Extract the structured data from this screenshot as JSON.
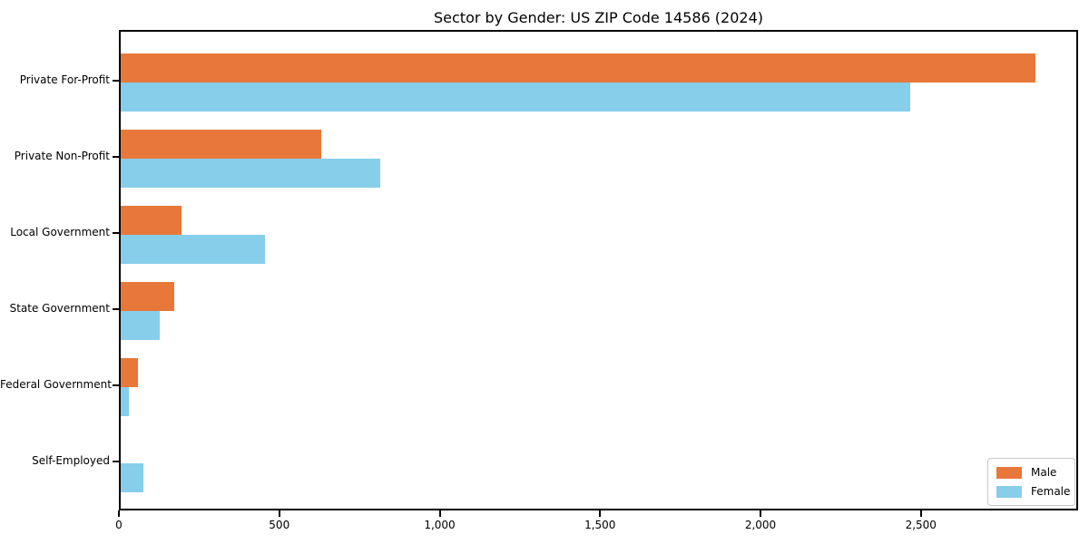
{
  "chart_data": {
    "type": "bar",
    "orientation": "horizontal",
    "title": "Sector by Gender: US ZIP Code 14586 (2024)",
    "categories": [
      "Private For-Profit",
      "Private Non-Profit",
      "Local Government",
      "State Government",
      "Federal Government",
      "Self-Employed"
    ],
    "series": [
      {
        "name": "Male",
        "color": "#E8773A",
        "values": [
          2850,
          625,
          190,
          168,
          54,
          0
        ]
      },
      {
        "name": "Female",
        "color": "#87CEEB",
        "values": [
          2460,
          810,
          450,
          122,
          26,
          70
        ]
      }
    ],
    "xlabel": "",
    "ylabel": "",
    "xlim": [
      0,
      2990
    ],
    "xticks": [
      0,
      500,
      1000,
      1500,
      2000,
      2500
    ],
    "xtick_labels": [
      "0",
      "500",
      "1,000",
      "1,500",
      "2,000",
      "2,500"
    ],
    "grid": false,
    "legend_position": "lower-right",
    "frame_color": "#000000",
    "background_color": "#ffffff"
  }
}
